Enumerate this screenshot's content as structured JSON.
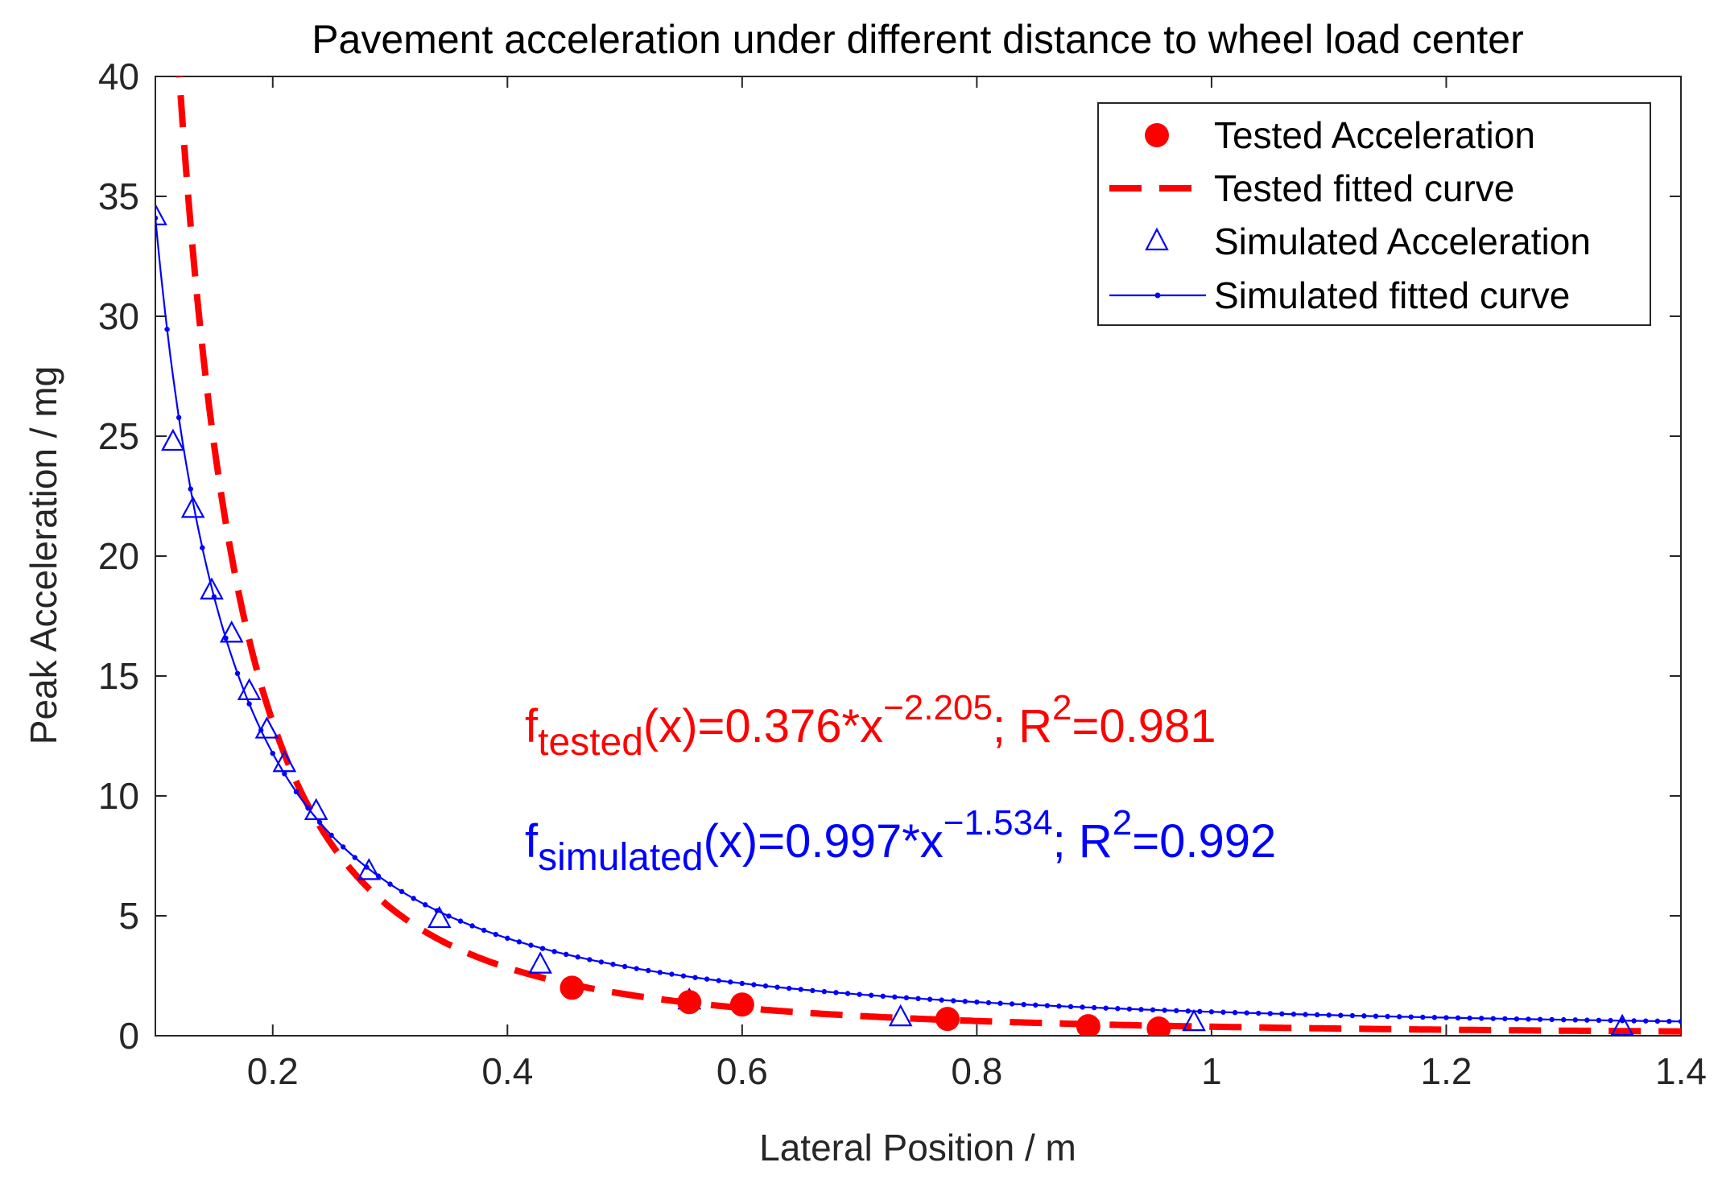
{
  "chart_data": {
    "type": "scatter",
    "title": "Pavement acceleration under different distance to wheel load center",
    "xlabel": "Lateral Position / m",
    "ylabel": "Peak Acceleration / mg",
    "xlim": [
      0.1,
      1.4
    ],
    "ylim": [
      0,
      40
    ],
    "xticks": [
      0.2,
      0.4,
      0.6,
      0.8,
      1,
      1.2,
      1.4
    ],
    "xtick_labels": [
      "0.2",
      "0.4",
      "0.6",
      "0.8",
      "1",
      "1.2",
      "1.4"
    ],
    "yticks": [
      0,
      5,
      10,
      15,
      20,
      25,
      30,
      35,
      40
    ],
    "ytick_labels": [
      "0",
      "5",
      "10",
      "15",
      "20",
      "25",
      "30",
      "35",
      "40"
    ],
    "legend_position": "top-right",
    "series": [
      {
        "name": "Tested Acceleration",
        "kind": "markers",
        "marker": "filled-circle",
        "color": "#ff0000",
        "x": [
          0.455,
          0.555,
          0.6,
          0.775,
          0.895,
          0.955
        ],
        "y": [
          2.0,
          1.4,
          1.3,
          0.7,
          0.4,
          0.3
        ]
      },
      {
        "name": "Tested fitted curve",
        "kind": "power-fit",
        "style": "dashed",
        "color": "#ff0000",
        "a": 0.376,
        "b": -2.205
      },
      {
        "name": "Simulated Acceleration",
        "kind": "markers",
        "marker": "open-triangle",
        "color": "#0000ff",
        "x": [
          0.1,
          0.115,
          0.132,
          0.148,
          0.165,
          0.18,
          0.195,
          0.21,
          0.237,
          0.282,
          0.342,
          0.428,
          0.555,
          0.735,
          0.985,
          1.35
        ],
        "y": [
          34.2,
          24.8,
          22.0,
          18.6,
          16.8,
          14.4,
          12.8,
          11.4,
          9.4,
          6.9,
          4.9,
          3.0,
          1.5,
          0.8,
          0.6,
          0.4
        ]
      },
      {
        "name": "Simulated fitted curve",
        "kind": "power-fit",
        "style": "solid-dotted",
        "color": "#0000ff",
        "a": 0.997,
        "b": -1.534
      }
    ],
    "annotations": [
      {
        "color": "#ff0000",
        "prefix": "f",
        "sub": "tested",
        "mid": "(x)=0.376*x",
        "sup": "−2.205",
        "tail": "; R",
        "sup2": "2",
        "end": "=0.981"
      },
      {
        "color": "#0000ff",
        "prefix": "f",
        "sub": "simulated",
        "mid": "(x)=0.997*x",
        "sup": "−1.534",
        "tail": "; R",
        "sup2": "2",
        "end": "=0.992"
      }
    ]
  }
}
